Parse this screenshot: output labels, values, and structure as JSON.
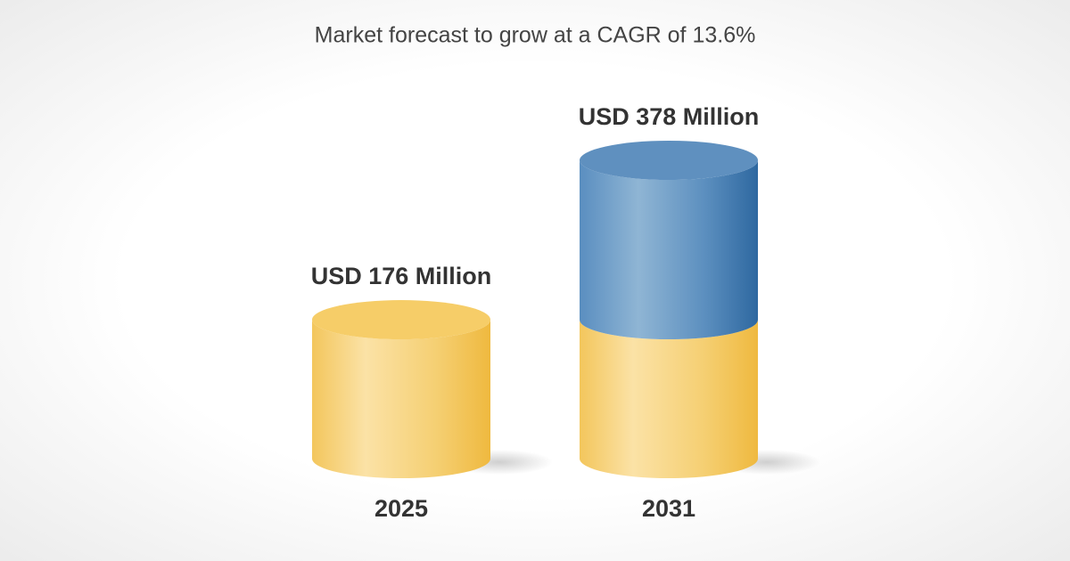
{
  "chart_data": {
    "type": "cylinder",
    "title": "Market forecast to grow at a CAGR of 13.6%",
    "categories": [
      "2025",
      "2031"
    ],
    "values": [
      176,
      378
    ],
    "value_labels": [
      "USD 176 Million",
      "USD 378 Million"
    ],
    "colors": [
      "#f2c14e",
      "#3f7db3"
    ]
  }
}
